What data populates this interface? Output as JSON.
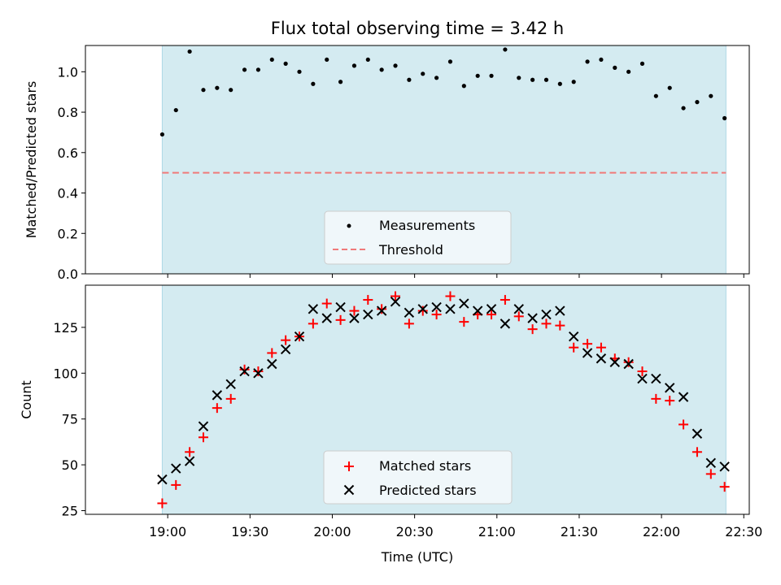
{
  "colors": {
    "span_fill": "#d4ebf1",
    "span_edge": "#add8e6",
    "measurement": "#000000",
    "threshold": "#f07a7a",
    "matched": "#ff0000",
    "predicted": "#000000",
    "legend_bg": "#f5f9fc",
    "legend_edge": "#cccccc"
  },
  "chart_data": [
    {
      "type": "scatter",
      "title": "Flux total observing time = 3.42 h",
      "ylabel": "Matched/Predicted stars",
      "xlabel": "",
      "xlim": [
        1110,
        1352
      ],
      "ylim": [
        0,
        1.13
      ],
      "observing_span": [
        1138,
        1343.5
      ],
      "yticks": [
        0.0,
        0.2,
        0.4,
        0.6,
        0.8,
        1.0
      ],
      "ytick_labels": [
        "0.0",
        "0.2",
        "0.4",
        "0.6",
        "0.8",
        "1.0"
      ],
      "xticks": [
        1140,
        1170,
        1200,
        1230,
        1260,
        1290,
        1320,
        1350
      ],
      "legend": {
        "position": "lower center",
        "entries": [
          "Measurements",
          "Threshold"
        ]
      },
      "threshold": {
        "name": "Threshold",
        "y": 0.5,
        "x_range": [
          1138,
          1343.5
        ]
      },
      "series": [
        {
          "name": "Measurements",
          "x": [
            1138,
            1143,
            1148,
            1153,
            1158,
            1163,
            1168,
            1173,
            1178,
            1183,
            1188,
            1193,
            1198,
            1203,
            1208,
            1213,
            1218,
            1223,
            1228,
            1233,
            1238,
            1243,
            1248,
            1253,
            1258,
            1263,
            1268,
            1273,
            1278,
            1283,
            1288,
            1293,
            1298,
            1303,
            1308,
            1313,
            1318,
            1323,
            1328,
            1333,
            1338,
            1343
          ],
          "values": [
            0.69,
            0.81,
            1.1,
            0.91,
            0.92,
            0.91,
            1.01,
            1.01,
            1.06,
            1.04,
            1.0,
            0.94,
            1.06,
            0.95,
            1.03,
            1.06,
            1.01,
            1.03,
            0.96,
            0.99,
            0.97,
            1.05,
            0.93,
            0.98,
            0.98,
            1.11,
            0.97,
            0.96,
            0.96,
            0.94,
            0.95,
            1.05,
            1.06,
            1.02,
            1.0,
            1.04,
            0.88,
            0.92,
            0.82,
            0.85,
            0.88,
            0.77
          ]
        }
      ]
    },
    {
      "type": "scatter",
      "title": "",
      "ylabel": "Count",
      "xlabel": "Time (UTC)",
      "xlim": [
        1110,
        1352
      ],
      "ylim": [
        23,
        148
      ],
      "observing_span": [
        1138,
        1343.5
      ],
      "yticks": [
        25,
        50,
        75,
        100,
        125
      ],
      "ytick_labels": [
        "25",
        "50",
        "75",
        "100",
        "125"
      ],
      "xticks": [
        1140,
        1170,
        1200,
        1230,
        1260,
        1290,
        1320,
        1350
      ],
      "xtick_labels": [
        "19:00",
        "19:30",
        "20:00",
        "20:30",
        "21:00",
        "21:30",
        "22:00",
        "22:30"
      ],
      "legend": {
        "position": "lower center",
        "entries": [
          "Matched stars",
          "Predicted stars"
        ]
      },
      "series": [
        {
          "name": "Matched stars",
          "marker": "plus",
          "x": [
            1138,
            1143,
            1148,
            1153,
            1158,
            1163,
            1168,
            1173,
            1178,
            1183,
            1188,
            1193,
            1198,
            1203,
            1208,
            1213,
            1218,
            1223,
            1228,
            1233,
            1238,
            1243,
            1248,
            1253,
            1258,
            1263,
            1268,
            1273,
            1278,
            1283,
            1288,
            1293,
            1298,
            1303,
            1308,
            1313,
            1318,
            1323,
            1328,
            1333,
            1338,
            1343
          ],
          "values": [
            29,
            39,
            57,
            65,
            81,
            86,
            102,
            101,
            111,
            118,
            120,
            127,
            138,
            129,
            134,
            140,
            135,
            142,
            127,
            134,
            132,
            142,
            128,
            132,
            132,
            140,
            131,
            124,
            127,
            126,
            114,
            116,
            114,
            108,
            106,
            101,
            86,
            85,
            72,
            57,
            45,
            38
          ]
        },
        {
          "name": "Predicted stars",
          "marker": "x",
          "x": [
            1138,
            1143,
            1148,
            1153,
            1158,
            1163,
            1168,
            1173,
            1178,
            1183,
            1188,
            1193,
            1198,
            1203,
            1208,
            1213,
            1218,
            1223,
            1228,
            1233,
            1238,
            1243,
            1248,
            1253,
            1258,
            1263,
            1268,
            1273,
            1278,
            1283,
            1288,
            1293,
            1298,
            1303,
            1308,
            1313,
            1318,
            1323,
            1328,
            1333,
            1338,
            1343
          ],
          "values": [
            42,
            48,
            52,
            71,
            88,
            94,
            101,
            100,
            105,
            113,
            120,
            135,
            130,
            136,
            130,
            132,
            134,
            139,
            133,
            135,
            136,
            135,
            138,
            134,
            135,
            127,
            135,
            130,
            132,
            134,
            120,
            111,
            108,
            106,
            105,
            97,
            97,
            92,
            87,
            67,
            51,
            49
          ]
        }
      ]
    }
  ]
}
